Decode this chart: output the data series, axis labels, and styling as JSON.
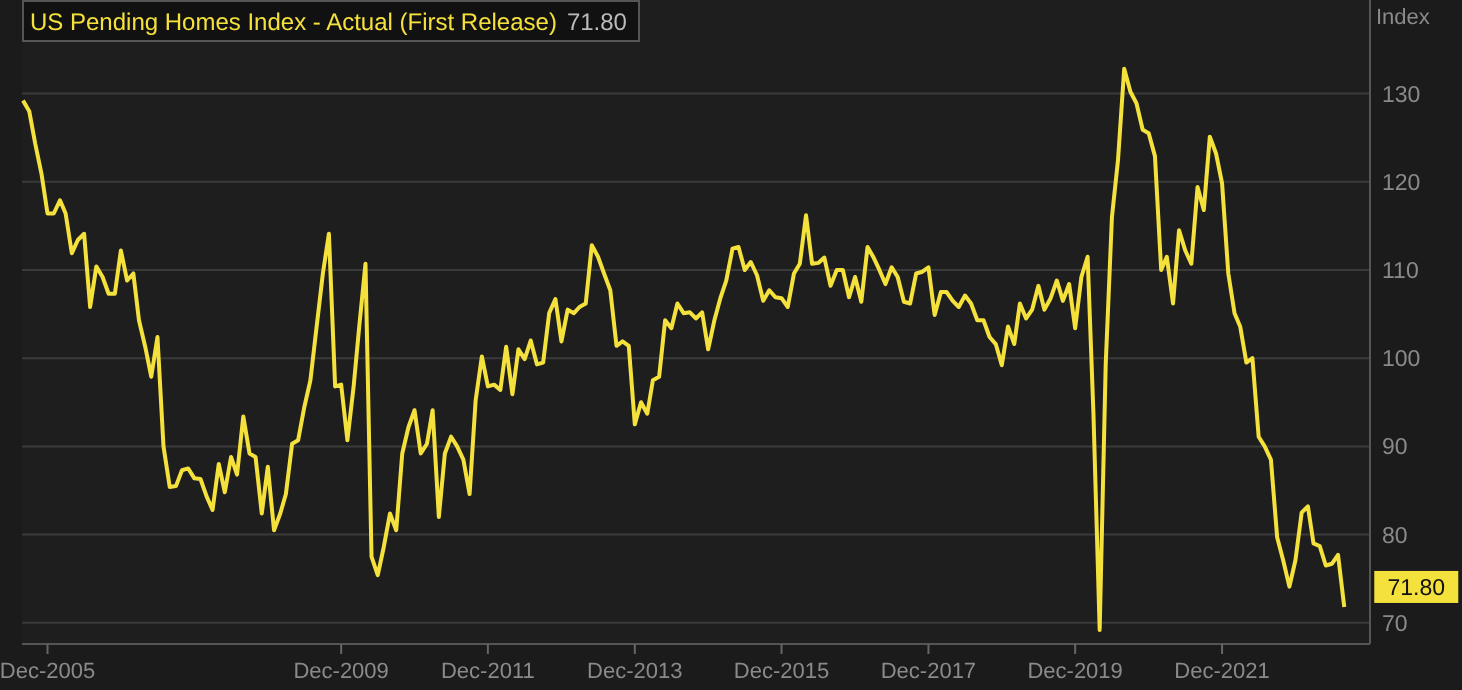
{
  "chart_data": {
    "type": "line",
    "ylabel": "Index",
    "legend": "top left",
    "grid": "y",
    "marker": "none",
    "line_style": "solid",
    "xlim": [
      "2005-07-27",
      "2023-12-07"
    ],
    "ylim": [
      67.6,
      140.6
    ],
    "xticks": [
      {
        "value": "2005-12",
        "label": "Dec-2005"
      },
      {
        "value": "2009-12",
        "label": "Dec-2009"
      },
      {
        "value": "2011-12",
        "label": "Dec-2011"
      },
      {
        "value": "2013-12",
        "label": "Dec-2013"
      },
      {
        "value": "2015-12",
        "label": "Dec-2015"
      },
      {
        "value": "2017-12",
        "label": "Dec-2017"
      },
      {
        "value": "2019-12",
        "label": "Dec-2019"
      },
      {
        "value": "2021-12",
        "label": "Dec-2021"
      }
    ],
    "yticks": [
      70,
      80,
      90,
      100,
      110,
      120,
      130
    ],
    "x": [
      "2005-08",
      "2005-09",
      "2005-10",
      "2005-11",
      "2005-12",
      "2006-01",
      "2006-02",
      "2006-03",
      "2006-04",
      "2006-05",
      "2006-06",
      "2006-07",
      "2006-08",
      "2006-09",
      "2006-10",
      "2006-11",
      "2006-12",
      "2007-01",
      "2007-02",
      "2007-03",
      "2007-04",
      "2007-05",
      "2007-06",
      "2007-07",
      "2007-08",
      "2007-09",
      "2007-10",
      "2007-11",
      "2007-12",
      "2008-01",
      "2008-02",
      "2008-03",
      "2008-04",
      "2008-05",
      "2008-06",
      "2008-07",
      "2008-08",
      "2008-09",
      "2008-10",
      "2008-11",
      "2008-12",
      "2009-01",
      "2009-02",
      "2009-03",
      "2009-04",
      "2009-05",
      "2009-06",
      "2009-07",
      "2009-08",
      "2009-09",
      "2009-10",
      "2009-11",
      "2009-12",
      "2010-01",
      "2010-02",
      "2010-03",
      "2010-04",
      "2010-05",
      "2010-06",
      "2010-07",
      "2010-08",
      "2010-09",
      "2010-10",
      "2010-11",
      "2010-12",
      "2011-01",
      "2011-02",
      "2011-03",
      "2011-04",
      "2011-05",
      "2011-06",
      "2011-07",
      "2011-08",
      "2011-09",
      "2011-10",
      "2011-11",
      "2011-12",
      "2012-01",
      "2012-02",
      "2012-03",
      "2012-04",
      "2012-05",
      "2012-06",
      "2012-07",
      "2012-08",
      "2012-09",
      "2012-10",
      "2012-11",
      "2012-12",
      "2013-01",
      "2013-02",
      "2013-03",
      "2013-04",
      "2013-05",
      "2013-06",
      "2013-07",
      "2013-08",
      "2013-09",
      "2013-10",
      "2013-11",
      "2013-12",
      "2014-01",
      "2014-02",
      "2014-03",
      "2014-04",
      "2014-05",
      "2014-06",
      "2014-07",
      "2014-08",
      "2014-09",
      "2014-10",
      "2014-11",
      "2014-12",
      "2015-01",
      "2015-02",
      "2015-03",
      "2015-04",
      "2015-05",
      "2015-06",
      "2015-07",
      "2015-08",
      "2015-09",
      "2015-10",
      "2015-11",
      "2015-12",
      "2016-01",
      "2016-02",
      "2016-03",
      "2016-04",
      "2016-05",
      "2016-06",
      "2016-07",
      "2016-08",
      "2016-09",
      "2016-10",
      "2016-11",
      "2016-12",
      "2017-01",
      "2017-02",
      "2017-03",
      "2017-04",
      "2017-05",
      "2017-06",
      "2017-07",
      "2017-08",
      "2017-09",
      "2017-10",
      "2017-11",
      "2017-12",
      "2018-01",
      "2018-02",
      "2018-03",
      "2018-04",
      "2018-05",
      "2018-06",
      "2018-07",
      "2018-08",
      "2018-09",
      "2018-10",
      "2018-11",
      "2018-12",
      "2019-01",
      "2019-02",
      "2019-03",
      "2019-04",
      "2019-05",
      "2019-06",
      "2019-07",
      "2019-08",
      "2019-09",
      "2019-10",
      "2019-11",
      "2019-12",
      "2020-01",
      "2020-02",
      "2020-03",
      "2020-04",
      "2020-05",
      "2020-06",
      "2020-07",
      "2020-08",
      "2020-09",
      "2020-10",
      "2020-11",
      "2020-12",
      "2021-01",
      "2021-02",
      "2021-03",
      "2021-04",
      "2021-05",
      "2021-06",
      "2021-07",
      "2021-08",
      "2021-09",
      "2021-10",
      "2021-11",
      "2021-12",
      "2022-01",
      "2022-02",
      "2022-03",
      "2022-04",
      "2022-05",
      "2022-06",
      "2022-07",
      "2022-08",
      "2022-09",
      "2022-10",
      "2022-11",
      "2022-12",
      "2023-01",
      "2023-02",
      "2023-03",
      "2023-04",
      "2023-05",
      "2023-06",
      "2023-07",
      "2023-08"
    ],
    "series": [
      {
        "name": "US Pending Homes Index - Actual (First Release)",
        "color": "#f5e13c",
        "values": [
          129.2,
          128.0,
          124.3,
          120.9,
          116.4,
          116.4,
          117.9,
          116.4,
          111.9,
          113.4,
          114.1,
          105.8,
          110.4,
          109.2,
          107.3,
          107.3,
          112.2,
          108.8,
          109.6,
          104.3,
          101.3,
          97.9,
          102.4,
          90.0,
          85.4,
          85.5,
          87.3,
          87.5,
          86.4,
          86.3,
          84.3,
          82.8,
          88.0,
          84.8,
          88.8,
          86.8,
          93.4,
          89.2,
          88.8,
          82.4,
          87.7,
          80.5,
          82.4,
          84.6,
          90.3,
          90.7,
          94.5,
          97.5,
          103.6,
          109.6,
          114.1,
          96.8,
          97.0,
          90.7,
          96.8,
          103.6,
          110.7,
          77.5,
          75.4,
          78.6,
          82.4,
          80.5,
          89.2,
          92.2,
          94.1,
          89.2,
          90.3,
          94.1,
          82.0,
          89.2,
          91.1,
          90.0,
          88.5,
          84.6,
          95.2,
          100.2,
          96.8,
          97.0,
          96.4,
          101.3,
          95.9,
          101.0,
          99.9,
          102.0,
          99.3,
          99.5,
          105.1,
          106.7,
          101.9,
          105.5,
          105.1,
          105.8,
          106.2,
          112.8,
          111.5,
          109.6,
          107.7,
          101.4,
          101.9,
          101.4,
          92.5,
          95.0,
          93.7,
          97.5,
          97.9,
          104.3,
          103.4,
          106.2,
          105.1,
          105.2,
          104.5,
          105.2,
          101.0,
          104.3,
          106.9,
          108.8,
          112.4,
          112.6,
          110.0,
          110.9,
          109.4,
          106.5,
          107.7,
          106.9,
          106.8,
          105.8,
          109.6,
          110.7,
          116.2,
          110.7,
          110.8,
          111.4,
          108.2,
          110.0,
          110.0,
          106.9,
          109.2,
          106.4,
          112.6,
          111.5,
          110.0,
          108.4,
          110.3,
          109.2,
          106.4,
          106.2,
          109.6,
          109.8,
          110.3,
          104.9,
          107.5,
          107.5,
          106.5,
          105.8,
          107.1,
          106.2,
          104.3,
          104.3,
          102.4,
          101.6,
          99.2,
          103.6,
          101.6,
          106.2,
          104.5,
          105.5,
          108.2,
          105.5,
          106.8,
          108.8,
          106.5,
          108.4,
          103.4,
          109.2,
          111.5,
          93.7,
          69.2,
          99.3,
          116.0,
          122.4,
          132.8,
          130.2,
          128.9,
          125.9,
          125.5,
          122.9,
          110.0,
          111.5,
          106.2,
          114.5,
          112.2,
          110.7,
          119.4,
          116.8,
          125.1,
          123.2,
          119.8,
          109.6,
          105.1,
          103.6,
          99.5,
          100.0,
          91.1,
          90.0,
          88.5,
          79.7,
          77.1,
          74.1,
          77.1,
          82.5,
          83.2,
          79.0,
          78.7,
          76.5,
          76.7,
          77.7,
          71.8
        ]
      }
    ],
    "annotations": [
      "71.80",
      {
        "text": "71.80",
        "x": "2023-08",
        "y": 71.8
      }
    ]
  }
}
